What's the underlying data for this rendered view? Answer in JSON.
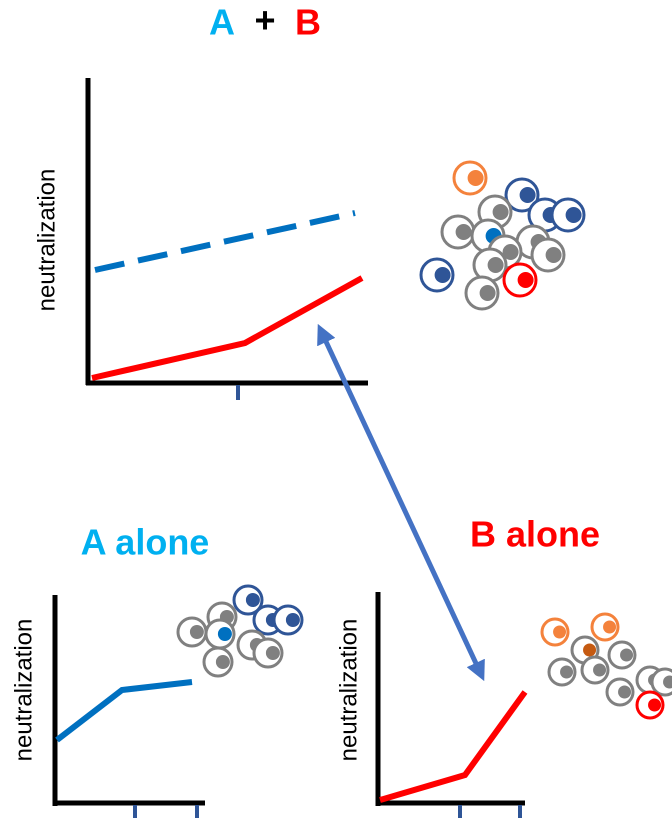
{
  "header": {
    "a": "A",
    "plus": "+",
    "b": "B"
  },
  "top_panel": {
    "y_label": "neutralization"
  },
  "a_panel": {
    "title": "A alone",
    "y_label": "neutralization"
  },
  "b_panel": {
    "title": "B alone",
    "y_label": "neutralization"
  }
}
